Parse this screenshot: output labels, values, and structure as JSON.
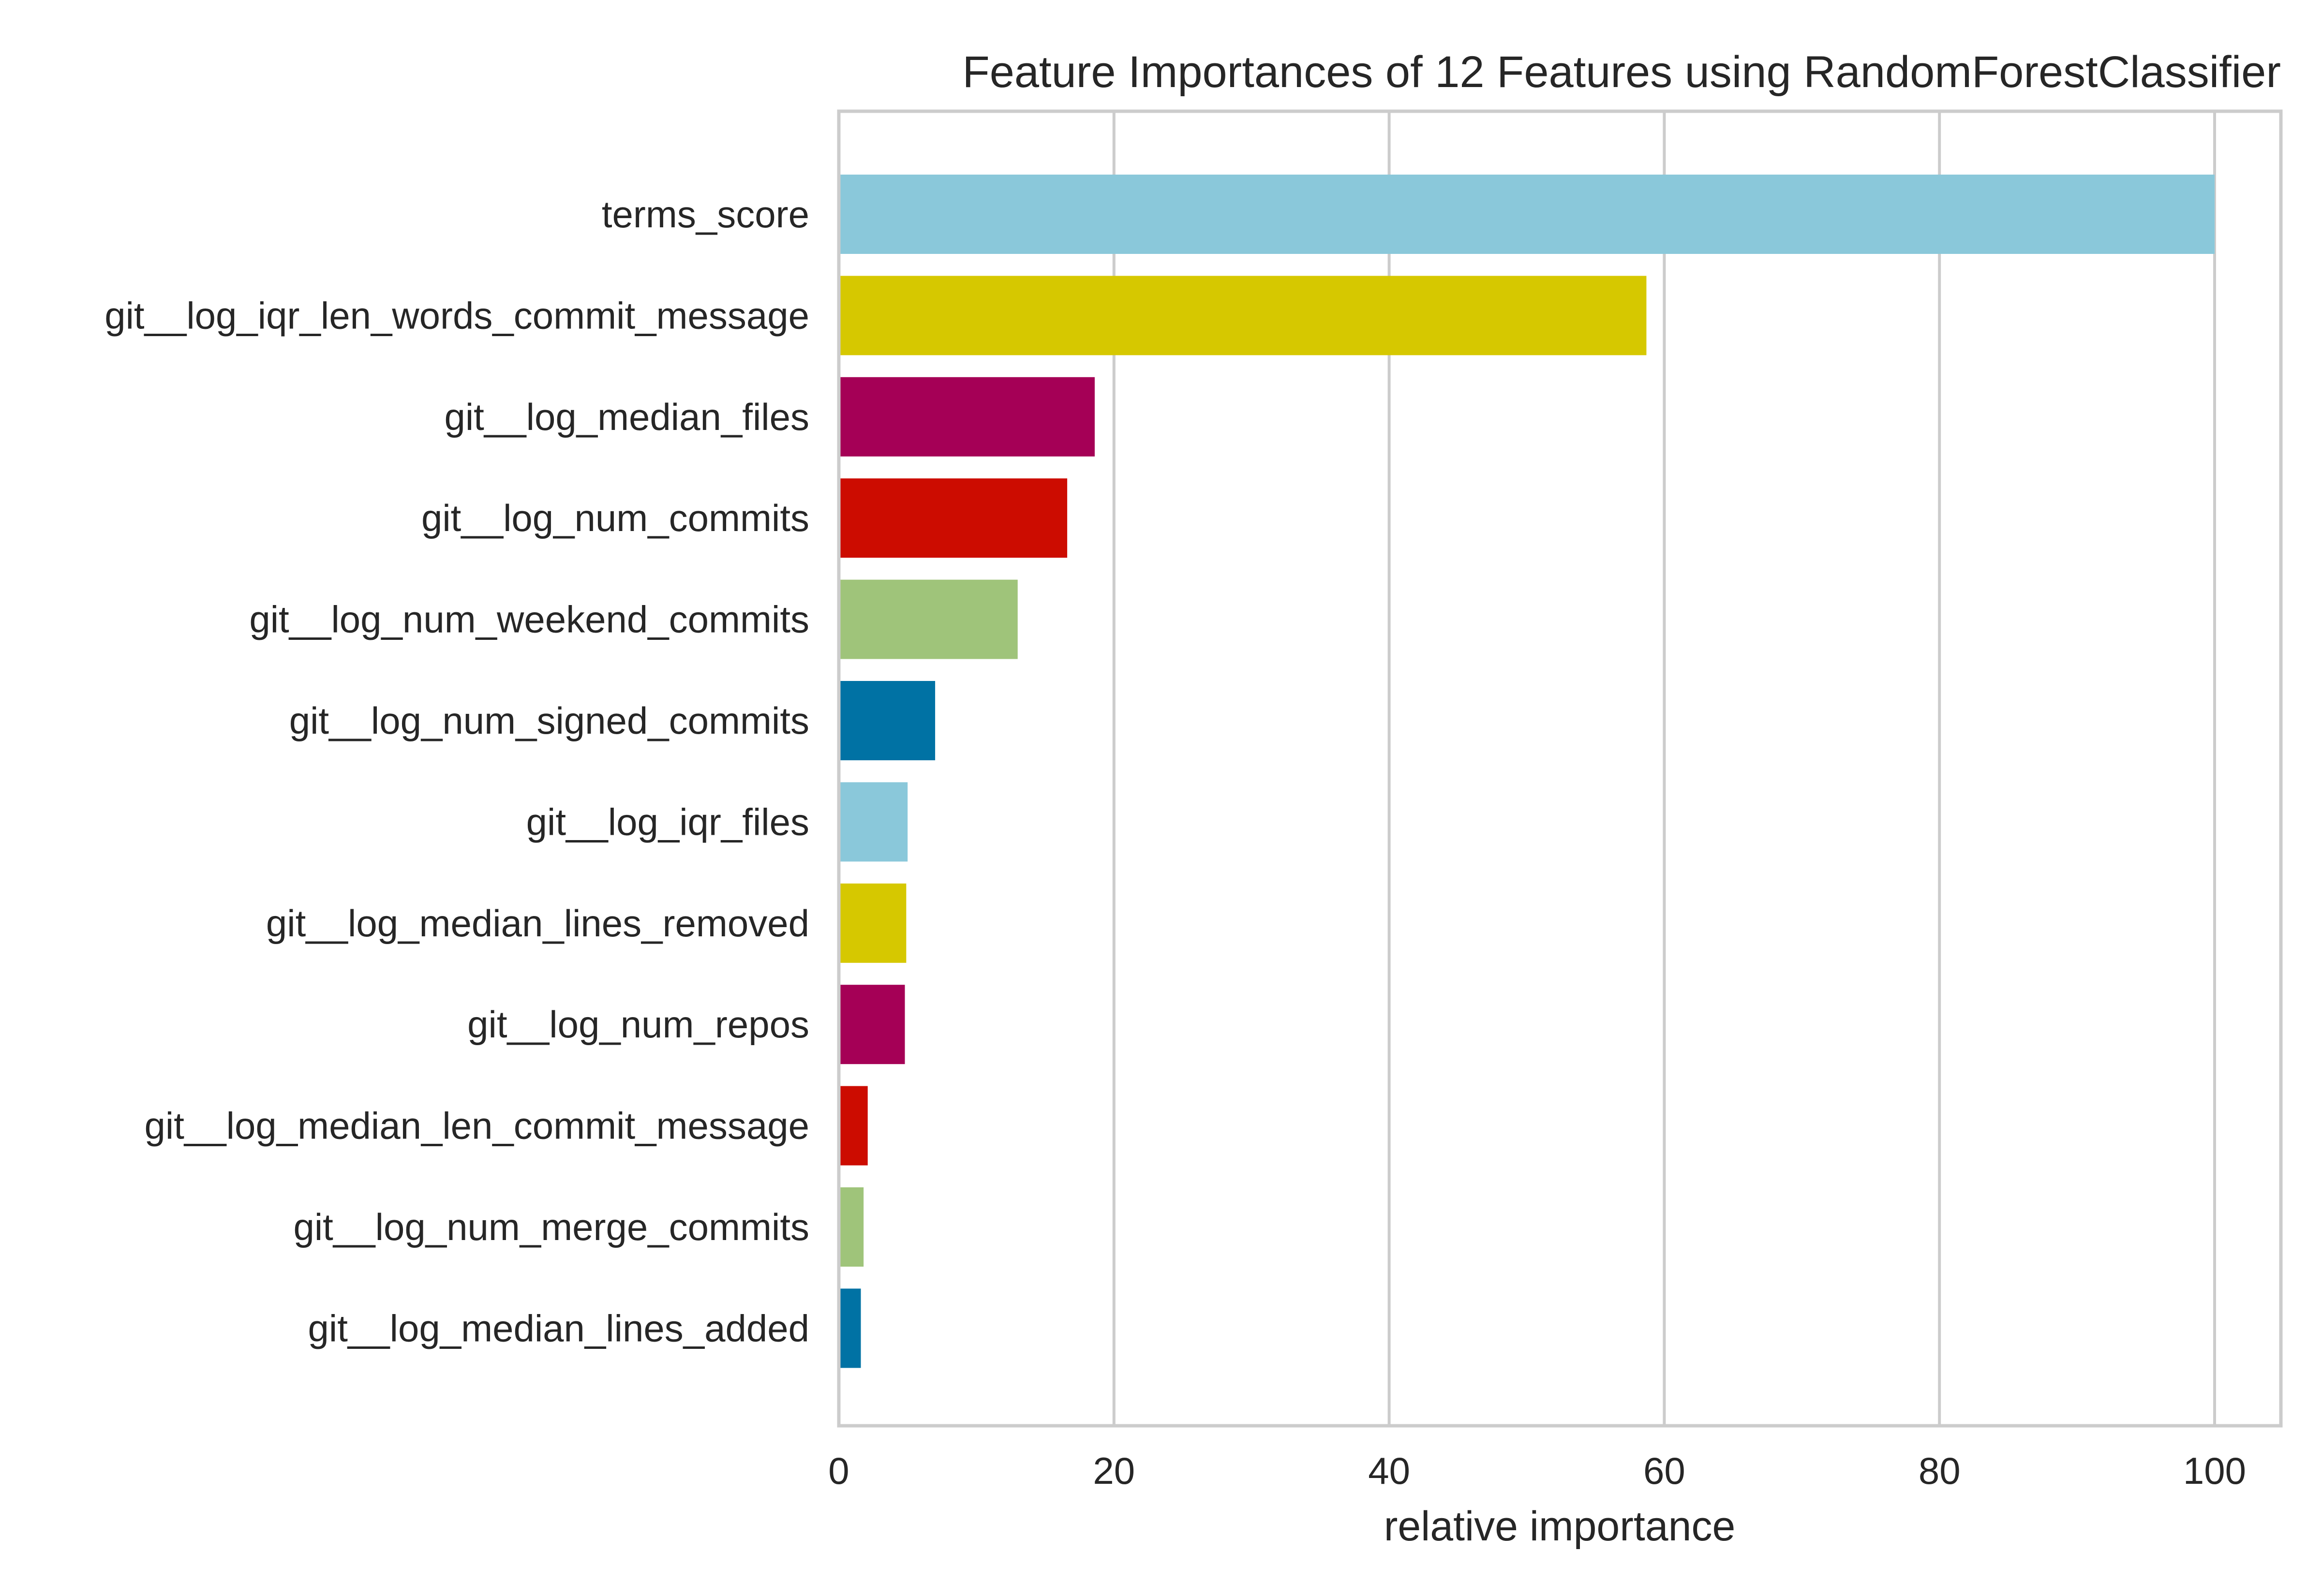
{
  "chart_data": {
    "type": "bar",
    "orientation": "horizontal",
    "title": "Feature Importances of 12 Features using RandomForestClassifier",
    "xlabel": "relative importance",
    "ylabel": "",
    "xlim": [
      0,
      105
    ],
    "xticks": [
      0,
      20,
      40,
      60,
      80,
      100
    ],
    "grid": true,
    "categories": [
      "terms_score",
      "git__log_iqr_len_words_commit_message",
      "git__log_median_files",
      "git__log_num_commits",
      "git__log_num_weekend_commits",
      "git__log_num_signed_commits",
      "git__log_iqr_files",
      "git__log_median_lines_removed",
      "git__log_num_repos",
      "git__log_median_len_commit_message",
      "git__log_num_merge_commits",
      "git__log_median_lines_added"
    ],
    "values": [
      100,
      58.7,
      18.6,
      16.6,
      13.0,
      7.0,
      5.0,
      4.9,
      4.8,
      2.1,
      1.8,
      1.6
    ],
    "colors": [
      "#8ac8da",
      "#d6c800",
      "#a50056",
      "#cc0c00",
      "#9fc47a",
      "#0072a4",
      "#8ac8da",
      "#d6c800",
      "#a50056",
      "#cc0c00",
      "#9fc47a",
      "#0072a4"
    ],
    "grid_color": "#cccccc",
    "frame_color": "#cccccc"
  }
}
